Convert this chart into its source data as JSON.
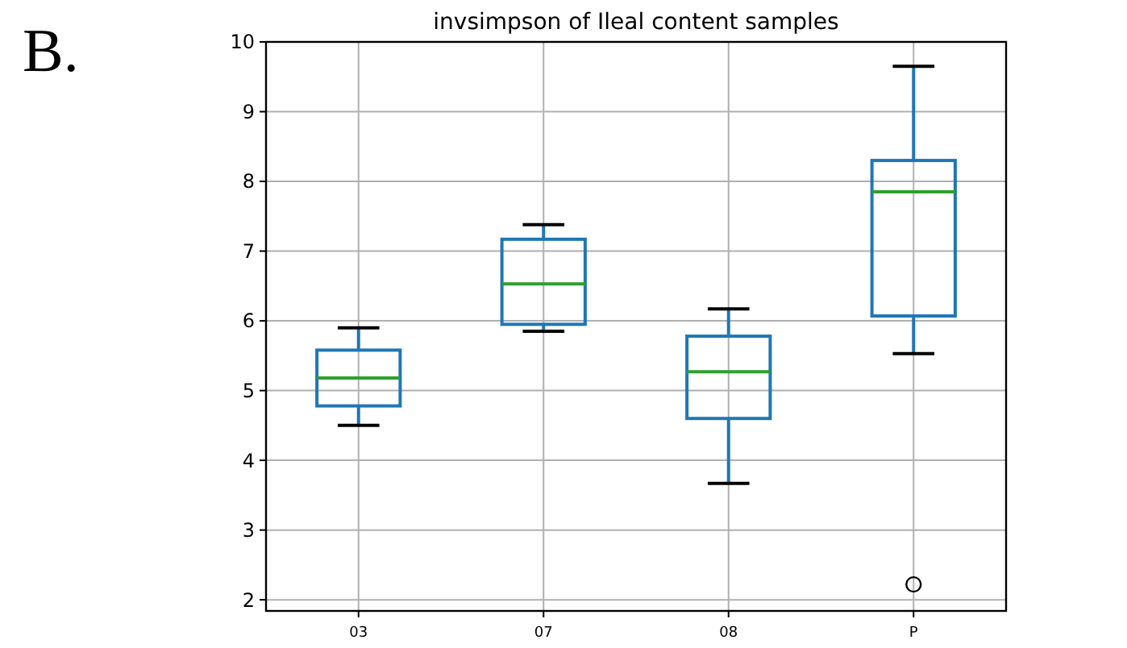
{
  "chart_data": {
    "type": "box",
    "title": "invsimpson of Ileal content samples",
    "categories": [
      "03",
      "07",
      "08",
      "P"
    ],
    "boxes": [
      {
        "low": 4.5,
        "q1": 4.78,
        "median": 5.18,
        "q3": 5.58,
        "high": 5.9
      },
      {
        "low": 5.85,
        "q1": 5.95,
        "median": 6.53,
        "q3": 7.17,
        "high": 7.38
      },
      {
        "low": 3.67,
        "q1": 4.6,
        "median": 5.27,
        "q3": 5.78,
        "high": 6.17
      },
      {
        "low": 5.53,
        "q1": 6.07,
        "median": 7.85,
        "q3": 8.3,
        "high": 9.65,
        "outliers": [
          2.22
        ]
      }
    ],
    "color": "#1f77b4",
    "ylim": [
      1.84,
      10
    ],
    "yticks": [
      2,
      3,
      4,
      5,
      6,
      7,
      8,
      9,
      10
    ],
    "grid": true,
    "annotations": [
      "B."
    ]
  }
}
